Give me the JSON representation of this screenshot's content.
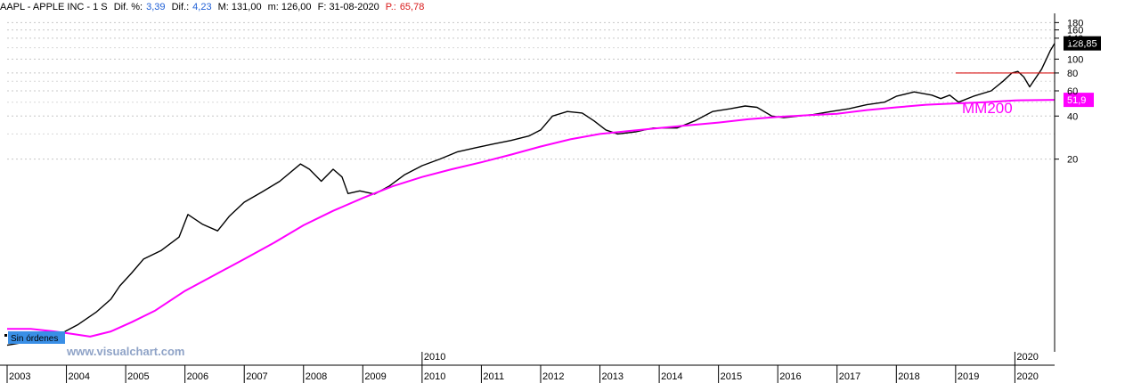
{
  "header": {
    "symbol": "AAPL - APPLE INC - 1 S",
    "dif_pct_label": "Dif. %:",
    "dif_pct_value": "3,39",
    "dif_label": "Dif.:",
    "dif_value": "4,23",
    "max_label": "M: 131,00",
    "min_label": "m: 126,00",
    "date_label": "F: 31-08-2020",
    "p_label": "P.:",
    "p_value": "65,78"
  },
  "watermark": "www.visualchart.com",
  "badge": "Sin órdenes",
  "chart_data": {
    "type": "line",
    "scale": "log",
    "xlim": [
      2003.0,
      2020.67
    ],
    "ylim": [
      0.9,
      200
    ],
    "yticks": [
      {
        "v": 180,
        "label": "180"
      },
      {
        "v": 160,
        "label": "160"
      },
      {
        "v": 140,
        "label": "140"
      },
      {
        "v": 100,
        "label": "100"
      },
      {
        "v": 80,
        "label": "80"
      },
      {
        "v": 60,
        "label": "60"
      },
      {
        "v": 40,
        "label": "40"
      },
      {
        "v": 20,
        "label": "20"
      }
    ],
    "xticks": [
      "2003",
      "2004",
      "2005",
      "2006",
      "2007",
      "2008",
      "2009",
      "2010",
      "2011",
      "2012",
      "2013",
      "2014",
      "2015",
      "2016",
      "2017",
      "2018",
      "2019",
      "2020"
    ],
    "highlight_xticks": [
      "2010",
      "2020"
    ],
    "series": [
      {
        "color": "#000000",
        "x": [
          2003.0,
          2003.3,
          2003.6,
          2003.9,
          2004.2,
          2004.5,
          2004.75,
          2004.9,
          2005.1,
          2005.3,
          2005.6,
          2005.9,
          2006.05,
          2006.3,
          2006.55,
          2006.75,
          2007.0,
          2007.3,
          2007.6,
          2007.95,
          2008.1,
          2008.3,
          2008.5,
          2008.65,
          2008.75,
          2008.95,
          2009.2,
          2009.45,
          2009.7,
          2010.0,
          2010.3,
          2010.6,
          2010.9,
          2011.2,
          2011.5,
          2011.8,
          2012.0,
          2012.2,
          2012.45,
          2012.7,
          2012.9,
          2013.1,
          2013.3,
          2013.6,
          2013.9,
          2014.3,
          2014.6,
          2014.9,
          2015.2,
          2015.45,
          2015.65,
          2015.9,
          2016.1,
          2016.35,
          2016.6,
          2016.9,
          2017.2,
          2017.5,
          2017.8,
          2018.0,
          2018.3,
          2018.6,
          2018.75,
          2018.9,
          2019.05,
          2019.3,
          2019.6,
          2019.8,
          2019.95,
          2020.05,
          2020.15,
          2020.25,
          2020.45,
          2020.6,
          2020.67
        ],
        "y": [
          1.0,
          1.05,
          1.1,
          1.2,
          1.4,
          1.7,
          2.1,
          2.6,
          3.2,
          4.0,
          4.6,
          5.7,
          8.2,
          7.0,
          6.3,
          8.0,
          10.0,
          11.8,
          14.0,
          18.5,
          17.0,
          14.0,
          17.0,
          15.0,
          11.5,
          12.0,
          11.4,
          13.0,
          15.5,
          18.0,
          20.0,
          22.5,
          24.0,
          25.5,
          27.0,
          29.0,
          32.0,
          40.0,
          43.0,
          42.0,
          37.0,
          32.0,
          30.0,
          31.0,
          33.0,
          33.0,
          37.0,
          43.0,
          45.0,
          47.0,
          46.0,
          40.0,
          39.0,
          40.0,
          41.0,
          43.0,
          45.0,
          48.0,
          50.0,
          55.0,
          59.0,
          56.0,
          53.0,
          56.0,
          50.0,
          55.0,
          60.0,
          70.0,
          80.0,
          82.0,
          75.0,
          64.0,
          85.0,
          115.0,
          128.85
        ]
      },
      {
        "color": "#ff00ff",
        "x": [
          2003.0,
          2003.4,
          2003.8,
          2004.1,
          2004.4,
          2004.75,
          2005.1,
          2005.5,
          2006.0,
          2006.5,
          2007.0,
          2007.5,
          2008.0,
          2008.5,
          2009.0,
          2009.5,
          2010.0,
          2010.5,
          2011.0,
          2011.5,
          2012.0,
          2012.5,
          2013.0,
          2013.5,
          2014.0,
          2014.5,
          2015.0,
          2015.5,
          2016.0,
          2016.5,
          2017.0,
          2017.5,
          2018.0,
          2018.5,
          2019.0,
          2019.5,
          2020.0,
          2020.67
        ],
        "y": [
          1.3,
          1.3,
          1.25,
          1.2,
          1.15,
          1.25,
          1.45,
          1.75,
          2.4,
          3.1,
          4.0,
          5.2,
          6.9,
          8.7,
          10.7,
          12.9,
          15.0,
          17.0,
          19.0,
          21.5,
          24.5,
          27.5,
          30.0,
          31.5,
          33.0,
          34.5,
          36.0,
          38.0,
          39.5,
          40.5,
          41.5,
          44.0,
          46.0,
          48.0,
          49.0,
          50.0,
          51.5,
          51.9
        ]
      }
    ],
    "hline": {
      "y": 80,
      "x_start": 2019.0,
      "x_end": 2020.67,
      "color": "#d81818"
    },
    "last_price_label": {
      "value": 128.85,
      "text": "128,85",
      "bg": "#000000"
    },
    "ma_label": {
      "value": 51.9,
      "text": "51,9",
      "bg": "#ff00ff"
    },
    "ma_name": "MM200",
    "ma_name_color": "#ff00ff"
  }
}
